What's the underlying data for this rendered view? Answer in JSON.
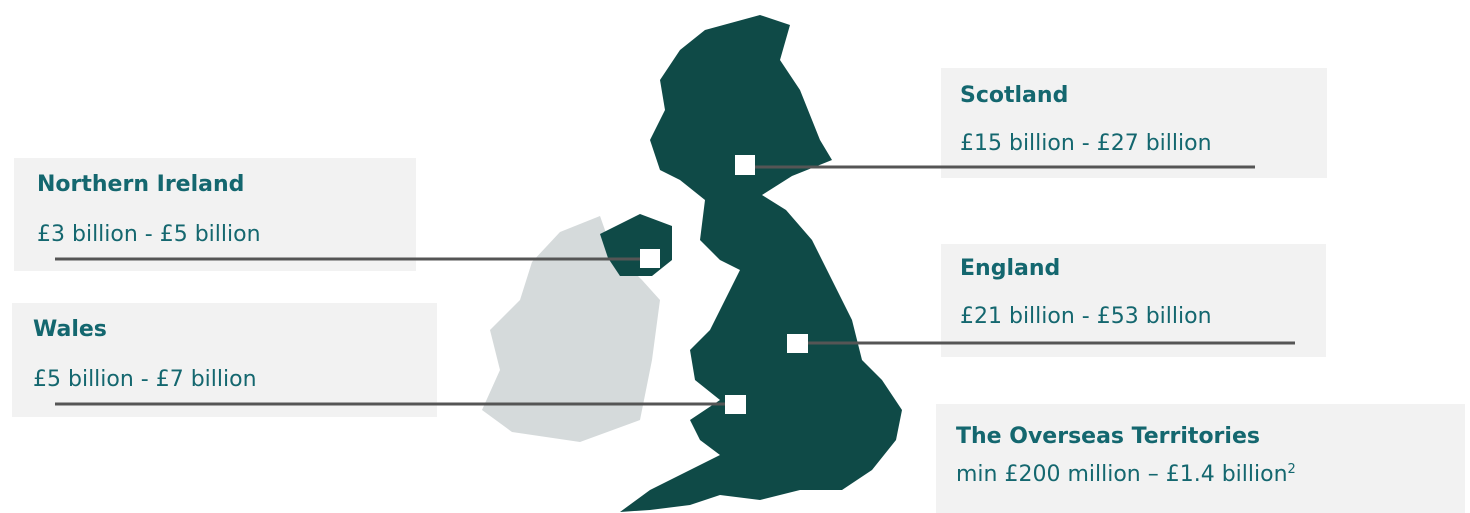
{
  "regions": [
    {
      "name": "Northern Ireland",
      "value": "£3 billion - £5 billion"
    },
    {
      "name": "Wales",
      "value": "£5 billion - £7 billion"
    },
    {
      "name": "Scotland",
      "value": "£15 billion - £27 billion"
    },
    {
      "name": "England",
      "value": "£21 billion - £53 billion"
    },
    {
      "name": "The Overseas Territories",
      "value": "min £200 million – £1.4 billion",
      "footnote": "2"
    }
  ]
}
